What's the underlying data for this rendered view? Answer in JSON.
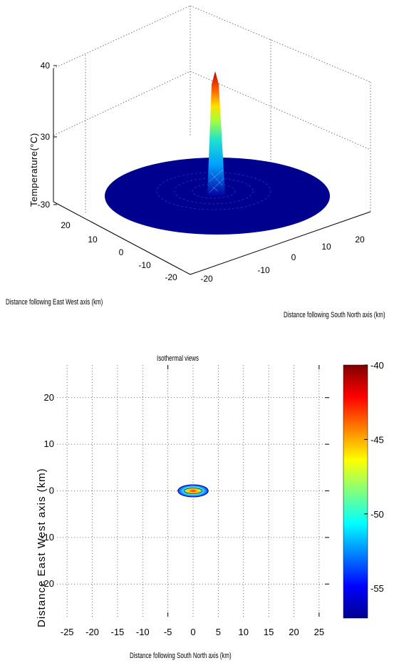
{
  "chart_data": [
    {
      "type": "surface",
      "title": "",
      "xlabel": "Distance following East West axis (km)",
      "ylabel": "Distance following South North axis (km)",
      "zlabel": "Temperature(°C)",
      "x_ticks": [
        "20",
        "10",
        "0",
        "-10",
        "-20"
      ],
      "y_ticks": [
        "-20",
        "-10",
        "0",
        "10",
        "20"
      ],
      "z_ticks": [
        "40",
        "30",
        "-30"
      ],
      "grid": true,
      "surface": {
        "base_value": -55,
        "peak_value": 38,
        "peak_location": [
          0,
          0
        ],
        "base_radius_km": 27
      },
      "colors": {
        "low": "#00008f",
        "mid": "#00ffff",
        "high": "#800000"
      }
    },
    {
      "type": "heatmap",
      "title": "Isothermal views",
      "xlabel": "Distance following South North axis (km)",
      "ylabel": "Distance East West axis (km)",
      "x_ticks": [
        -25,
        -20,
        -15,
        -10,
        -5,
        0,
        5,
        10,
        15,
        20,
        25
      ],
      "y_ticks": [
        "20",
        "10",
        "0",
        "-10",
        "-20"
      ],
      "xlim": [
        -27,
        27
      ],
      "ylim": [
        -27,
        27
      ],
      "colorbar": {
        "ticks": [
          -40,
          -45,
          -50,
          -55
        ],
        "range": [
          -57,
          -40
        ]
      },
      "hotspot": {
        "center": [
          0,
          0
        ],
        "half_width_km": 3,
        "half_height_km": 1.3
      }
    }
  ]
}
